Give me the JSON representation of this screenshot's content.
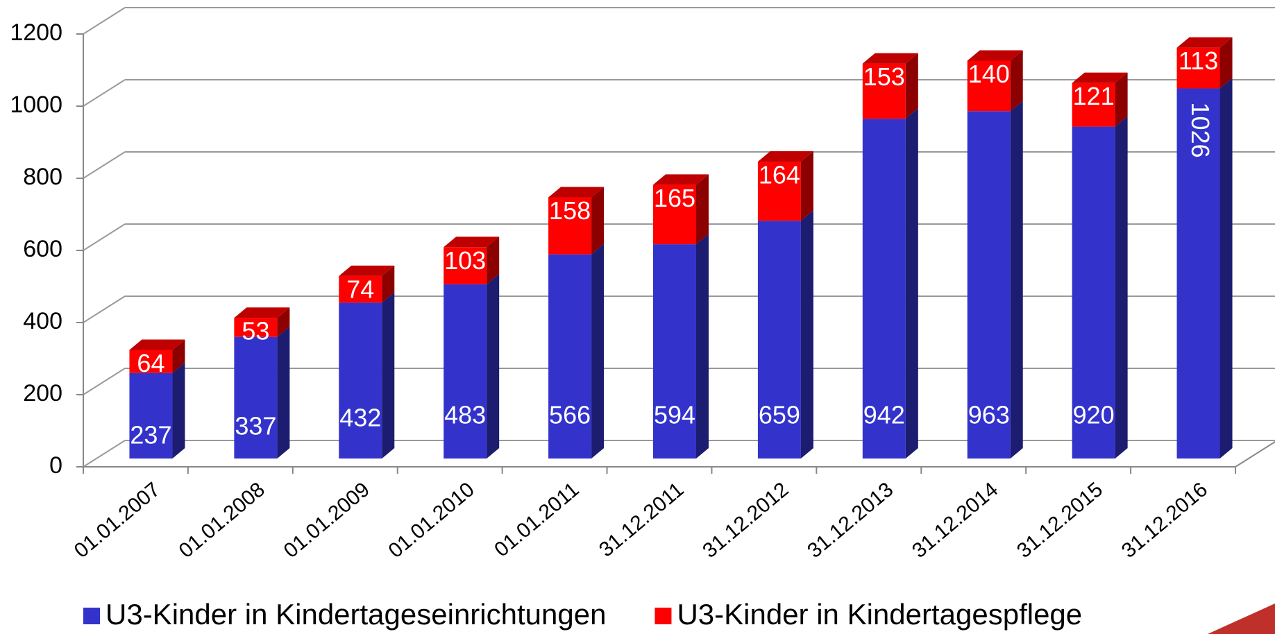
{
  "chart_data": {
    "type": "bar3d_stacked",
    "categories": [
      "01.01.2007",
      "01.01.2008",
      "01.01.2009",
      "01.01.2010",
      "01.01.2011",
      "31.12.2011",
      "31.12.2012",
      "31.12.2013",
      "31.12.2014",
      "31.12.2015",
      "31.12.2016"
    ],
    "series": [
      {
        "name": "U3-Kinder in Kindertageseinrichtungen",
        "color": "#3333cc",
        "values": [
          237,
          337,
          432,
          483,
          566,
          594,
          659,
          942,
          963,
          920,
          1026
        ]
      },
      {
        "name": "U3-Kinder in Kindertagespflege",
        "color": "#ff0000",
        "values": [
          64,
          53,
          74,
          103,
          158,
          165,
          164,
          153,
          140,
          121,
          113
        ]
      }
    ],
    "ylim": [
      0,
      1200
    ],
    "yticks": [
      0,
      200,
      400,
      600,
      800,
      1000,
      1200
    ],
    "grid": true,
    "legend": "bottom"
  }
}
